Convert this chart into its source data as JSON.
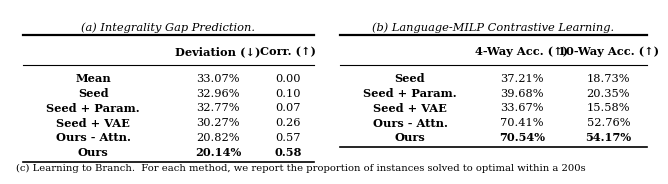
{
  "title_a": "(a) Integrality Gap Prediction.",
  "title_b": "(b) Language-MILP Contrastive Learning.",
  "caption": "(c) Learning to Branch.  For each method, we report the proportion of instances solved to optimal within a 200s",
  "table_a": {
    "headers": [
      "",
      "Deviation (↓)",
      "Corr. (↑)"
    ],
    "rows": [
      [
        "Mean",
        "33.07%",
        "0.00"
      ],
      [
        "Seed",
        "32.96%",
        "0.10"
      ],
      [
        "Seed + Param.",
        "32.77%",
        "0.07"
      ],
      [
        "Seed + VAE",
        "30.27%",
        "0.26"
      ],
      [
        "Ours - Attn.",
        "20.82%",
        "0.57"
      ],
      [
        "Ours",
        "20.14%",
        "0.58"
      ]
    ],
    "bold_rows": [
      0,
      1,
      2,
      3,
      4,
      5
    ],
    "bold_cols_last_row": [
      0,
      1,
      2
    ]
  },
  "table_b": {
    "headers": [
      "",
      "4-Way Acc. (↑)",
      "10-Way Acc. (↑)"
    ],
    "rows": [
      [
        "Seed",
        "37.21%",
        "18.73%"
      ],
      [
        "Seed + Param.",
        "39.68%",
        "20.35%"
      ],
      [
        "Seed + VAE",
        "33.67%",
        "15.58%"
      ],
      [
        "Ours - Attn.",
        "70.41%",
        "52.76%"
      ],
      [
        "Ours",
        "70.54%",
        "54.17%"
      ]
    ],
    "bold_rows": [
      0,
      1,
      2,
      3,
      4
    ],
    "bold_cols_last_row": [
      0,
      1,
      2
    ]
  },
  "bg_color": "white",
  "text_color": "black",
  "font_size": 8.2
}
